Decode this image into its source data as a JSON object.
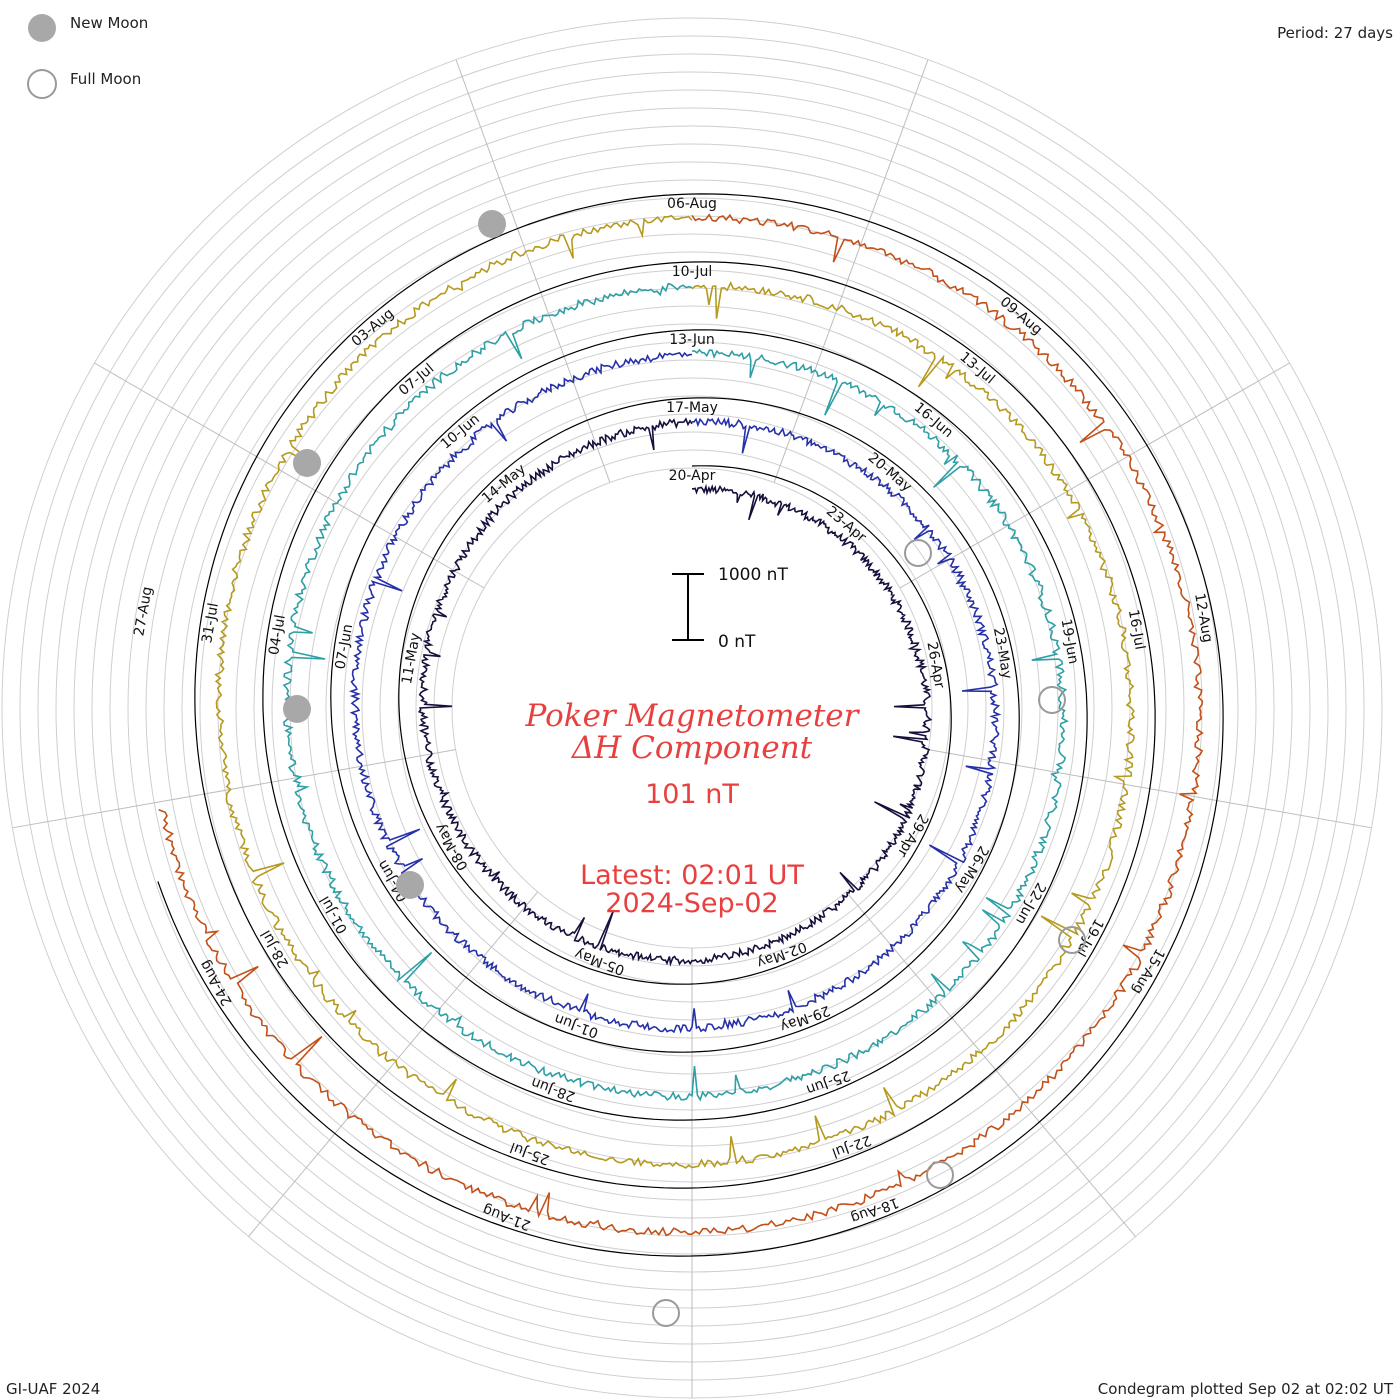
{
  "legend": {
    "new_moon": "New Moon",
    "full_moon": "Full Moon"
  },
  "period": "Period: 27 days",
  "footer_left": "GI-UAF 2024",
  "footer_right": "Condegram plotted Sep 02 at 02:02 UT",
  "chart_data": {
    "type": "line",
    "title": "Poker Magnetometer",
    "subtitle": "ΔH Component",
    "current_value": "101 nT",
    "latest_time": "Latest: 02:01 UT",
    "latest_date": "2024-Sep-02",
    "scale_bar": {
      "top_label": "1000 nT",
      "bottom_label": "0 nT"
    },
    "period_days": 27,
    "series": [
      {
        "name": "",
        "color": "#15103c",
        "labels": [
          "20-Apr",
          "23-Apr",
          "26-Apr",
          "29-Apr",
          "02-May",
          "05-May",
          "08-May",
          "11-May",
          "14-May"
        ]
      },
      {
        "name": "",
        "color": "#2630a8",
        "labels": [
          "17-May",
          "20-May",
          "23-May",
          "26-May",
          "29-May",
          "01-Jun",
          "04-Jun",
          "07-Jun",
          "10-Jun"
        ]
      },
      {
        "name": "",
        "color": "#2f9fa6",
        "labels": [
          "13-Jun",
          "16-Jun",
          "19-Jun",
          "22-Jun",
          "25-Jun",
          "28-Jun",
          "01-Jul",
          "04-Jul",
          "07-Jul"
        ]
      },
      {
        "name": "",
        "color": "#b59a1f",
        "labels": [
          "10-Jul",
          "13-Jul",
          "16-Jul",
          "19-Jul",
          "22-Jul",
          "25-Jul",
          "28-Jul",
          "31-Jul",
          "03-Aug"
        ]
      },
      {
        "name": "",
        "color": "#c25018",
        "labels": [
          "06-Aug",
          "09-Aug",
          "12-Aug",
          "15-Aug",
          "18-Aug",
          "21-Aug",
          "24-Aug",
          "27-Aug"
        ]
      }
    ],
    "new_moon_dates": [
      "08-May",
      "07-Jun",
      "06-Jul",
      "04-Aug"
    ],
    "full_moon_dates": [
      "23-Apr",
      "23-May",
      "22-Jun",
      "21-Jul",
      "19-Aug"
    ]
  }
}
